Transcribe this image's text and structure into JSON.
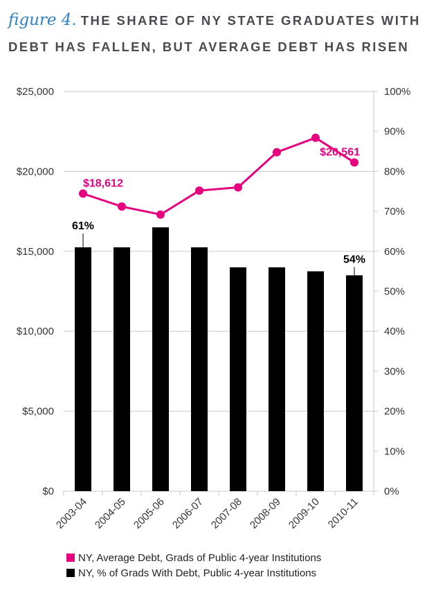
{
  "title": {
    "figure_label": "figure 4.",
    "line1": "THE SHARE OF NY STATE GRADUATES WITH",
    "line2": "DEBT HAS FALLEN, BUT AVERAGE DEBT HAS RISEN"
  },
  "colors": {
    "line": "#e6007e",
    "bar": "#000000",
    "grid": "#c8c8c8",
    "axis_text": "#333333"
  },
  "chart_data": {
    "type": "bar",
    "categories": [
      "2003-04",
      "2004-05",
      "2005-06",
      "2006-07",
      "2007-08",
      "2008-09",
      "2009-10",
      "2010-11"
    ],
    "y_left": {
      "ylim": [
        0,
        25000
      ],
      "ticks": [
        "$0",
        "$5,000",
        "$10,000",
        "$15,000",
        "$20,000",
        "$25,000"
      ]
    },
    "y_right": {
      "ylim": [
        0,
        100
      ],
      "ticks": [
        "0%",
        "10%",
        "20%",
        "30%",
        "40%",
        "50%",
        "60%",
        "70%",
        "80%",
        "90%",
        "100%"
      ]
    },
    "grid": true,
    "legend_position": "bottom",
    "series": [
      {
        "name": "NY, Average Debt, Grads of Public 4-year Institutions",
        "type": "line",
        "axis": "left",
        "values": [
          18612,
          17800,
          17300,
          18800,
          19000,
          21200,
          22100,
          20561
        ]
      },
      {
        "name": "NY, % of Grads With Debt, Public 4-year Institutions",
        "type": "bar",
        "axis": "right",
        "values": [
          61,
          61,
          66,
          61,
          56,
          56,
          55,
          54
        ]
      }
    ],
    "annotations": [
      {
        "series": 0,
        "index": 0,
        "text": "$18,612"
      },
      {
        "series": 0,
        "index": 7,
        "text": "$20,561"
      },
      {
        "series": 1,
        "index": 0,
        "text": "61%"
      },
      {
        "series": 1,
        "index": 7,
        "text": "54%"
      }
    ]
  }
}
